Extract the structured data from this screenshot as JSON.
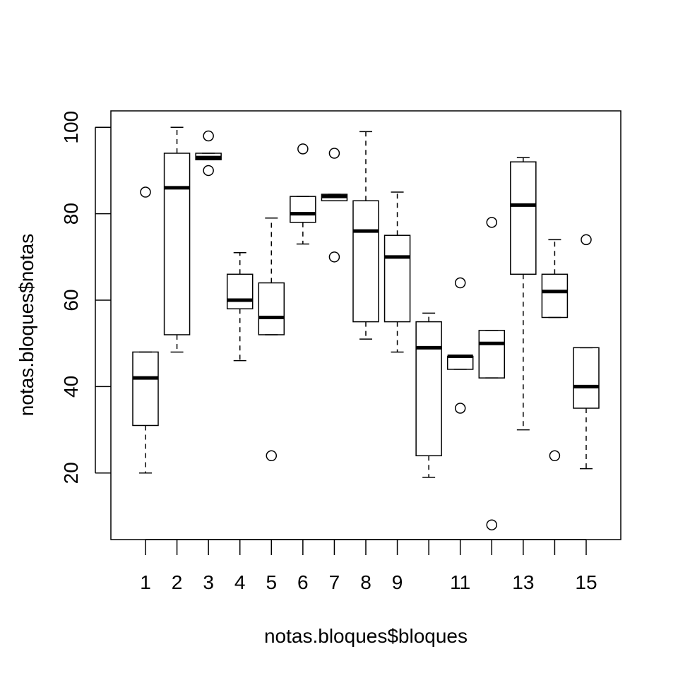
{
  "chart_data": {
    "type": "boxplot",
    "title": "",
    "xlabel": "notas.bloques$bloques",
    "ylabel": "notas.bloques$notas",
    "ylim": [
      4.6,
      103.8
    ],
    "grid": false,
    "legend": "none",
    "y_ticks": [
      20,
      40,
      60,
      80,
      100
    ],
    "categories": [
      "1",
      "2",
      "3",
      "4",
      "5",
      "6",
      "7",
      "8",
      "9",
      "10",
      "11",
      "12",
      "13",
      "14",
      "15"
    ],
    "x_tick_labels_shown": [
      "1",
      "2",
      "3",
      "4",
      "5",
      "6",
      "7",
      "8",
      "9",
      "",
      "11",
      "",
      "13",
      "",
      "15"
    ],
    "boxes": [
      {
        "group": "1",
        "whisker_low": 20,
        "q1": 31,
        "median": 42,
        "q3": 48,
        "whisker_high": 48,
        "outliers": [
          85
        ]
      },
      {
        "group": "2",
        "whisker_low": 48,
        "q1": 52,
        "median": 86,
        "q3": 94,
        "whisker_high": 100,
        "outliers": []
      },
      {
        "group": "3",
        "whisker_low": 92.5,
        "q1": 92.5,
        "median": 93,
        "q3": 94,
        "whisker_high": 94,
        "outliers": [
          98,
          90
        ]
      },
      {
        "group": "4",
        "whisker_low": 46,
        "q1": 58,
        "median": 60,
        "q3": 66,
        "whisker_high": 71,
        "outliers": []
      },
      {
        "group": "5",
        "whisker_low": 52,
        "q1": 52,
        "median": 56,
        "q3": 64,
        "whisker_high": 79,
        "outliers": [
          24
        ]
      },
      {
        "group": "6",
        "whisker_low": 73,
        "q1": 78,
        "median": 80,
        "q3": 84,
        "whisker_high": 84,
        "outliers": [
          95
        ]
      },
      {
        "group": "7",
        "whisker_low": 83,
        "q1": 83,
        "median": 84,
        "q3": 84.5,
        "whisker_high": 84.5,
        "outliers": [
          94,
          70
        ]
      },
      {
        "group": "8",
        "whisker_low": 51,
        "q1": 55,
        "median": 76,
        "q3": 83,
        "whisker_high": 99,
        "outliers": []
      },
      {
        "group": "9",
        "whisker_low": 48,
        "q1": 55,
        "median": 70,
        "q3": 75,
        "whisker_high": 85,
        "outliers": []
      },
      {
        "group": "10",
        "whisker_low": 19,
        "q1": 24,
        "median": 49,
        "q3": 55,
        "whisker_high": 57,
        "outliers": []
      },
      {
        "group": "11",
        "whisker_low": 44,
        "q1": 44,
        "median": 47,
        "q3": 47,
        "whisker_high": 47,
        "outliers": [
          64,
          35
        ]
      },
      {
        "group": "12",
        "whisker_low": 42,
        "q1": 42,
        "median": 50,
        "q3": 53,
        "whisker_high": 53,
        "outliers": [
          78,
          8
        ]
      },
      {
        "group": "13",
        "whisker_low": 30,
        "q1": 66,
        "median": 82,
        "q3": 92,
        "whisker_high": 93,
        "outliers": []
      },
      {
        "group": "14",
        "whisker_low": 56,
        "q1": 56,
        "median": 62,
        "q3": 66,
        "whisker_high": 74,
        "outliers": [
          24
        ]
      },
      {
        "group": "15",
        "whisker_low": 21,
        "q1": 35,
        "median": 40,
        "q3": 49,
        "whisker_high": 49,
        "outliers": [
          74
        ]
      }
    ]
  }
}
